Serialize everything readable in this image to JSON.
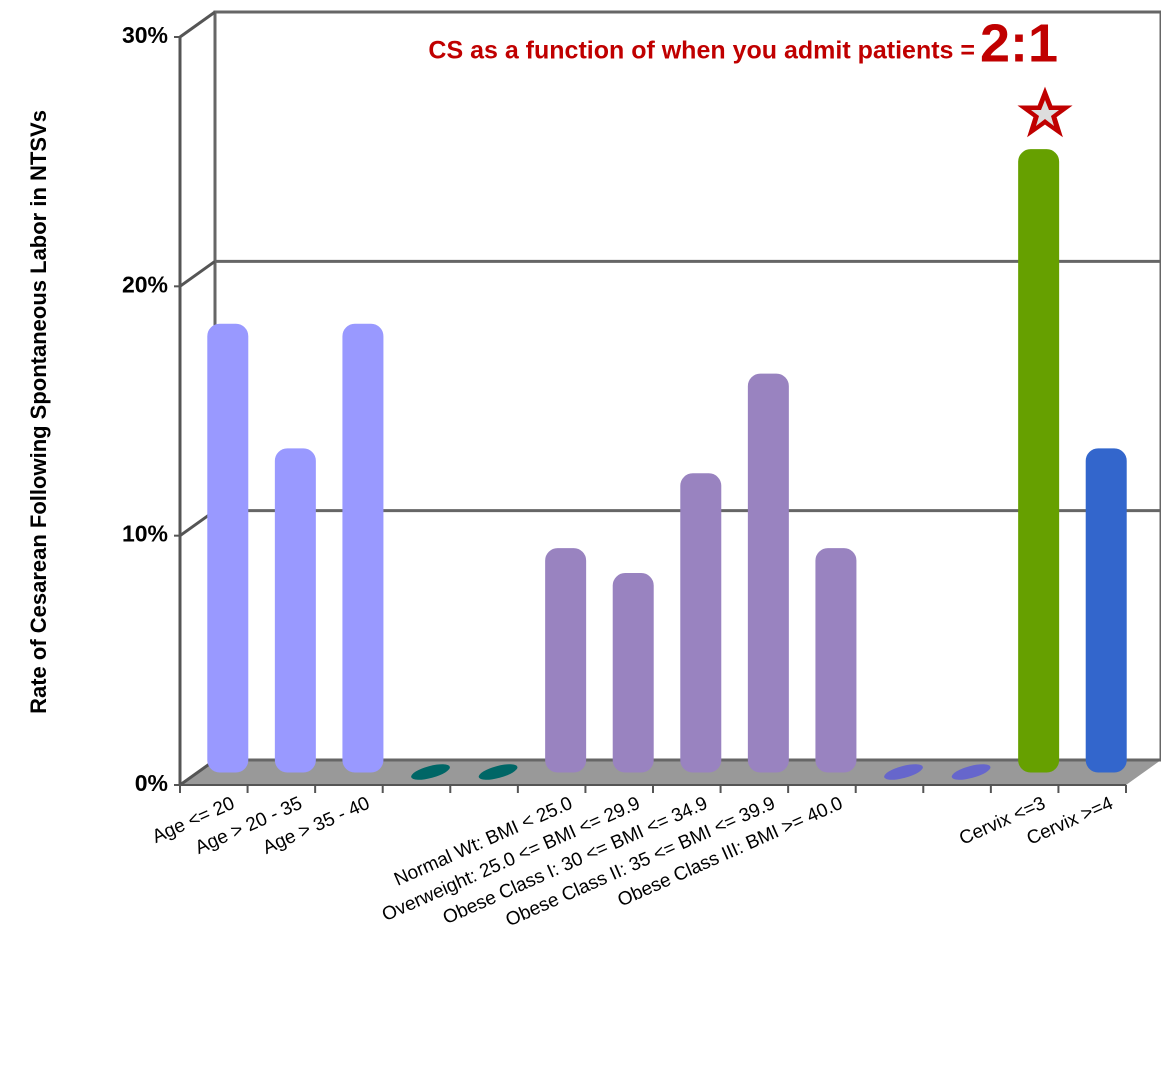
{
  "chart_data": {
    "type": "bar3d",
    "y_label": "Rate of Cesarean Following Spontaneous Labor in NTSVs",
    "annotation": {
      "text": "CS as a function of when you admit patients =",
      "emphasis": "2:1"
    },
    "categories": [
      "Age <= 20",
      "Age > 20 - 35",
      "Age > 35 - 40",
      null,
      null,
      "Normal Wt: BMI < 25.0",
      "Overweight: 25.0 <= BMI <= 29.9",
      "Obese Class I: 30 <= BMI <= 34.9",
      "Obese Class II: 35 <= BMI <= 39.9",
      "Obese Class III: BMI >= 40.0",
      null,
      null,
      "Cervix <=3",
      "Cervix >=4"
    ],
    "values": [
      18,
      13,
      18,
      0,
      0,
      9,
      8,
      12,
      16,
      9,
      0,
      0,
      25,
      13
    ],
    "colors": [
      "#9999ff",
      "#9999ff",
      "#9999ff",
      "#006666",
      "#006666",
      "#9983c0",
      "#9983c0",
      "#9983c0",
      "#9983c0",
      "#9983c0",
      "#6666cc",
      "#6666cc",
      "#66a000",
      "#3366cc"
    ],
    "ylim": [
      0,
      30
    ],
    "yticks": [
      {
        "value": 0,
        "label": "0%"
      },
      {
        "value": 10,
        "label": "10%"
      },
      {
        "value": 20,
        "label": "20%"
      },
      {
        "value": 30,
        "label": "30%"
      }
    ],
    "grid": true
  }
}
